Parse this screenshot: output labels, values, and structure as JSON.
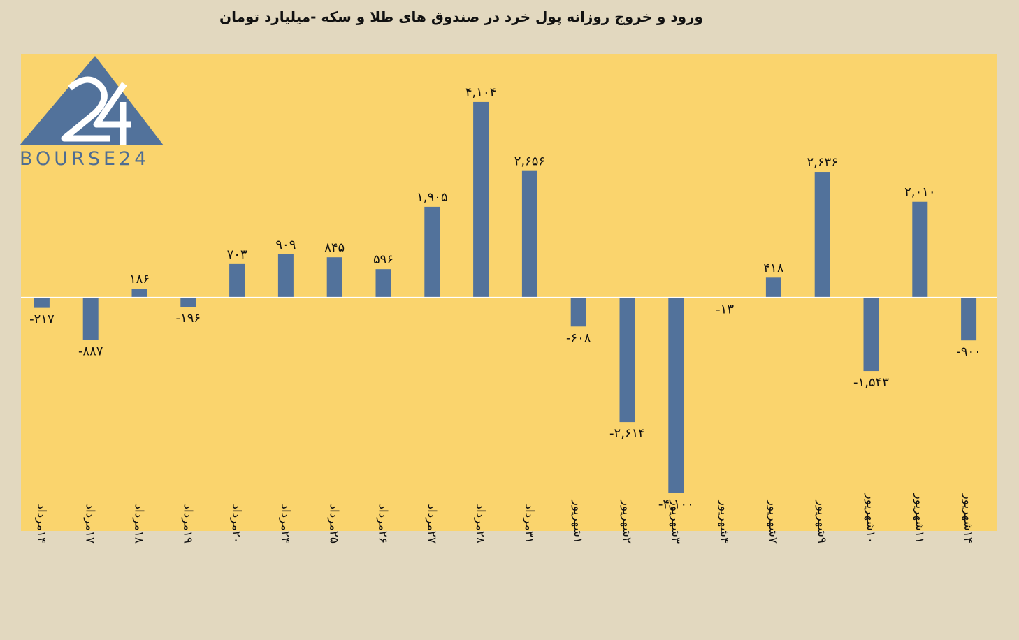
{
  "title": "ورود و خروج روزانه پول خرد در صندوق های طلا و سکه -میلیارد تومان",
  "logo": {
    "text": "BOURSE24",
    "mark": "24"
  },
  "colors": {
    "background": "#e2d8bf",
    "plot": "#fad46d",
    "bar": "#52729b",
    "text": "#111111"
  },
  "chart_data": {
    "type": "bar",
    "title": "ورود و خروج روزانه پول خرد در صندوق های طلا و سکه -میلیارد تومان",
    "categories": [
      "۱۴مرداد",
      "۱۷مرداد",
      "۱۸مرداد",
      "۱۹مرداد",
      "۲۰مرداد",
      "۲۴مرداد",
      "۲۵مرداد",
      "۲۶مرداد",
      "۲۷مرداد",
      "۲۸مرداد",
      "۳۱مرداد",
      "۱شهریور",
      "۲شهریور",
      "۳شهریور",
      "۴شهریور",
      "۷شهریور",
      "۹شهریور",
      "۱۰شهریور",
      "۱۱شهریور",
      "۱۴شهریور"
    ],
    "values": [
      -217,
      -887,
      186,
      -196,
      703,
      909,
      845,
      596,
      1905,
      4104,
      2656,
      -608,
      -2614,
      -4100,
      -13,
      418,
      2636,
      -1543,
      2010,
      -900
    ],
    "data_labels": [
      "-۲۱۷",
      "-۸۸۷",
      "۱۸۶",
      "-۱۹۶",
      "۷۰۳",
      "۹۰۹",
      "۸۴۵",
      "۵۹۶",
      "۱,۹۰۵",
      "۴,۱۰۴",
      "۲,۶۵۶",
      "-۶۰۸",
      "-۲,۶۱۴",
      "-۴,۱۰۰",
      "-۱۳",
      "۴۱۸",
      "۲,۶۳۶",
      "-۱,۵۴۳",
      "۲,۰۱۰",
      "-۹۰۰"
    ],
    "xlabel": "",
    "ylabel": "",
    "ylim": [
      -4900,
      5100
    ],
    "grid": false,
    "legend": "none"
  }
}
